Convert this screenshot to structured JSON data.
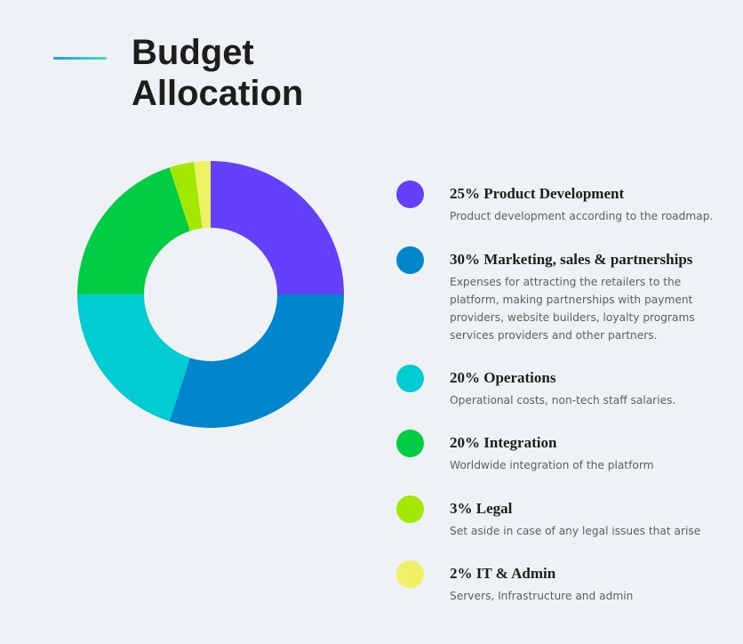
{
  "header": {
    "title": "Budget Allocation"
  },
  "chart_data": {
    "type": "pie",
    "donut": true,
    "slices": [
      {
        "label": "Product Development",
        "value": 25,
        "color": "#6440fb"
      },
      {
        "label": "Marketing, sales & partnerships",
        "value": 30,
        "color": "#0086cc"
      },
      {
        "label": "Operations",
        "value": 20,
        "color": "#00ccd1"
      },
      {
        "label": "Integration",
        "value": 20,
        "color": "#00cc44"
      },
      {
        "label": "Legal",
        "value": 3,
        "color": "#a2e800"
      },
      {
        "label": "IT & Admin",
        "value": 2,
        "color": "#f0f066"
      }
    ]
  },
  "legend": [
    {
      "title": "25% Product Development",
      "desc": "Product development according to the roadmap.",
      "color": "#6440fb"
    },
    {
      "title": "30% Marketing, sales & partnerships",
      "desc": "Expenses for attracting the retailers to the platform, making partnerships with payment providers, website builders, loyalty programs services providers and other partners.",
      "color": "#0086cc"
    },
    {
      "title": "20% Operations",
      "desc": "Operational costs, non-tech staff salaries.",
      "color": "#00ccd1"
    },
    {
      "title": "20% Integration",
      "desc": "Worldwide integration of the platform",
      "color": "#00cc44"
    },
    {
      "title": "3% Legal",
      "desc": "Set aside in case of any legal issues that arise",
      "color": "#a2e800"
    },
    {
      "title": "2% IT & Admin",
      "desc": "Servers, Infrastructure and admin",
      "color": "#f0f066"
    }
  ]
}
